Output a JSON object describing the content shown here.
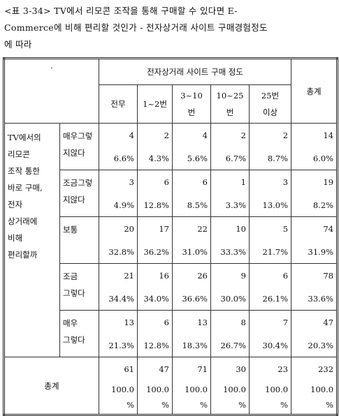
{
  "title_lines": [
    "<표 3-34> TV에서 리모콘 조작을 통해 구매할 수 있다면 E-",
    "Commerce에 비해 편리할 것인가 - 전자상거래 사이트 구매경험정도",
    "에 따라"
  ],
  "table": {
    "corner": ".",
    "group_header": "전자상거래 사이트 구매 정도",
    "total_header": "총계",
    "columns": [
      [
        "전무"
      ],
      [
        "1~2번"
      ],
      [
        "3~10",
        "번"
      ],
      [
        "10~25",
        "번"
      ],
      [
        "25번",
        "이상"
      ]
    ],
    "row_group_label": [
      "TV에서의",
      "리모콘",
      "조작 통한",
      "바로 구매,",
      "전자",
      "상거래에",
      "비해",
      "편리할까"
    ],
    "rows": [
      {
        "label": [
          "매우그렇",
          "지않다"
        ],
        "counts": [
          4,
          2,
          4,
          2,
          2,
          14
        ],
        "percents": [
          "6.6%",
          "4.3%",
          "5.6%",
          "6.7%",
          "8.7%",
          "6.0%"
        ]
      },
      {
        "label": [
          "조금그렇",
          "지않다"
        ],
        "counts": [
          3,
          6,
          6,
          1,
          3,
          19
        ],
        "percents": [
          "4.9%",
          "12.8%",
          "8.5%",
          "3.3%",
          "13.0%",
          "8.2%"
        ]
      },
      {
        "label": [
          "보통"
        ],
        "counts": [
          20,
          17,
          22,
          10,
          5,
          74
        ],
        "percents": [
          "32.8%",
          "36.2%",
          "31.0%",
          "33.3%",
          "21.7%",
          "31.9%"
        ]
      },
      {
        "label": [
          "조금",
          "그렇다"
        ],
        "counts": [
          21,
          16,
          26,
          9,
          6,
          78
        ],
        "percents": [
          "34.4%",
          "34.0%",
          "36.6%",
          "30.0%",
          "26.1%",
          "33.6%"
        ]
      },
      {
        "label": [
          "매우",
          "그렇다"
        ],
        "counts": [
          13,
          6,
          13,
          8,
          7,
          47
        ],
        "percents": [
          "21.3%",
          "12.8%",
          "18.3%",
          "26.7%",
          "30.4%",
          "20.3%"
        ]
      }
    ],
    "total": {
      "label": "총계",
      "counts": [
        61,
        47,
        71,
        30,
        23,
        232
      ],
      "percents": [
        [
          "100.0",
          "%"
        ],
        [
          "100.0",
          "%"
        ],
        [
          "100.0",
          "%"
        ],
        [
          "100.0",
          "%"
        ],
        [
          "100.0",
          "%"
        ],
        [
          "100.0",
          "%"
        ]
      ]
    }
  }
}
